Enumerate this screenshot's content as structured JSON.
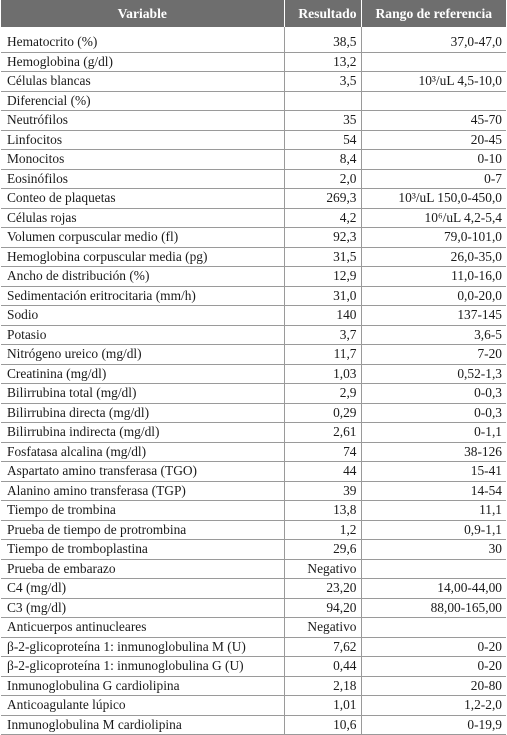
{
  "table": {
    "headers": {
      "variable": "Variable",
      "result": "Resultado",
      "range": "Rango de referencia"
    },
    "rows": [
      {
        "variable": "Hematocrito (%)",
        "result": "38,5",
        "range": "37,0-47,0"
      },
      {
        "variable": "Hemoglobina (g/dl)",
        "result": "13,2",
        "range": ""
      },
      {
        "variable": "Células blancas",
        "result": "3,5",
        "range": "10³/uL 4,5-10,0"
      },
      {
        "variable": "Diferencial (%)",
        "result": "",
        "range": ""
      },
      {
        "variable": "Neutrófilos",
        "result": "35",
        "range": "45-70"
      },
      {
        "variable": "Linfocitos",
        "result": "54",
        "range": "20-45"
      },
      {
        "variable": "Monocitos",
        "result": "8,4",
        "range": "0-10"
      },
      {
        "variable": "Eosinófilos",
        "result": "2,0",
        "range": "0-7"
      },
      {
        "variable": "Conteo de plaquetas",
        "result": "269,3",
        "range": "10³/uL 150,0-450,0"
      },
      {
        "variable": "Células rojas",
        "result": "4,2",
        "range": "10⁶/uL 4,2-5,4"
      },
      {
        "variable": "Volumen corpuscular medio (fl)",
        "result": "92,3",
        "range": "79,0-101,0"
      },
      {
        "variable": "Hemoglobina corpuscular media (pg)",
        "result": "31,5",
        "range": "26,0-35,0"
      },
      {
        "variable": "Ancho de distribución (%)",
        "result": "12,9",
        "range": "11,0-16,0"
      },
      {
        "variable": "Sedimentación eritrocitaria (mm/h)",
        "result": "31,0",
        "range": "0,0-20,0"
      },
      {
        "variable": "Sodio",
        "result": "140",
        "range": "137-145"
      },
      {
        "variable": "Potasio",
        "result": "3,7",
        "range": "3,6-5"
      },
      {
        "variable": "Nitrógeno ureico (mg/dl)",
        "result": "11,7",
        "range": "7-20"
      },
      {
        "variable": "Creatinina (mg/dl)",
        "result": "1,03",
        "range": "0,52-1,3"
      },
      {
        "variable": "Bilirrubina total (mg/dl)",
        "result": "2,9",
        "range": "0-0,3"
      },
      {
        "variable": "Bilirrubina directa (mg/dl)",
        "result": "0,29",
        "range": "0-0,3"
      },
      {
        "variable": "Bilirrubina indirecta (mg/dl)",
        "result": "2,61",
        "range": "0-1,1"
      },
      {
        "variable": "Fosfatasa alcalina (mg/dl)",
        "result": "74",
        "range": "38-126"
      },
      {
        "variable": "Aspartato amino transferasa (TGO)",
        "result": "44",
        "range": "15-41"
      },
      {
        "variable": "Alanino amino transferasa (TGP)",
        "result": "39",
        "range": "14-54"
      },
      {
        "variable": "Tiempo de trombina",
        "result": "13,8",
        "range": "11,1"
      },
      {
        "variable": "Prueba de tiempo de protrombina",
        "result": "1,2",
        "range": "0,9-1,1"
      },
      {
        "variable": "Tiempo de tromboplastina",
        "result": "29,6",
        "range": "30"
      },
      {
        "variable": "Prueba de embarazo",
        "result": "Negativo",
        "range": ""
      },
      {
        "variable": "C4 (mg/dl)",
        "result": "23,20",
        "range": "14,00-44,00"
      },
      {
        "variable": "C3 (mg/dl)",
        "result": "94,20",
        "range": "88,00-165,00"
      },
      {
        "variable": "Anticuerpos antinucleares",
        "result": "Negativo",
        "range": ""
      },
      {
        "variable": "β-2-glicoproteína 1: inmunoglobulina M (U)",
        "result": "7,62",
        "range": "0-20"
      },
      {
        "variable": "β-2-glicoproteína 1: inmunoglobulina G (U)",
        "result": "0,44",
        "range": "0-20"
      },
      {
        "variable": "Inmunoglobulina G cardiolipina",
        "result": "2,18",
        "range": "20-80"
      },
      {
        "variable": "Anticoagulante lúpico",
        "result": "1,01",
        "range": "1,2-2,0"
      },
      {
        "variable": "Inmunoglobulina M cardiolipina",
        "result": "10,6",
        "range": "0-19,9"
      }
    ]
  }
}
